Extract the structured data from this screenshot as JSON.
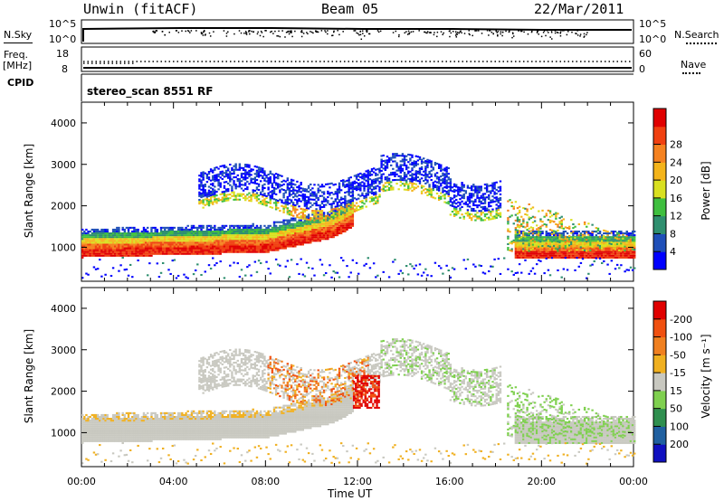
{
  "header": {
    "station": "Unwin (fitACF)",
    "beam": "Beam 05",
    "date": "22/Mar/2011"
  },
  "panels": {
    "nsky": {
      "label": "N.Sky",
      "right_label": "N.Search",
      "ticks_left": [
        "10^5",
        "10^0"
      ],
      "ticks_right": [
        "10^5",
        "10^0"
      ]
    },
    "freq": {
      "label_line1": "Freq.",
      "label_line2": "[MHz]",
      "right_label": "Nave",
      "ticks_left": [
        "18",
        "8"
      ],
      "ticks_right": [
        "60",
        "0"
      ]
    },
    "cpid": {
      "label": "CPID",
      "value": "stereo_scan 8551 RF"
    }
  },
  "chart_data": [
    {
      "type": "heatmap",
      "name": "power",
      "ylabel": "Slant Range [km]",
      "ylim": [
        180,
        4500
      ],
      "yticks": [
        1000,
        2000,
        3000,
        4000
      ],
      "xlabel": "",
      "colorbar": {
        "label": "Power [dB]",
        "ticks": [
          4,
          8,
          12,
          16,
          20,
          24,
          28
        ],
        "colors": [
          "#0000ff",
          "#1f4fb8",
          "#2f8f6f",
          "#3fbf3f",
          "#d9e020",
          "#f4b41a",
          "#f58220",
          "#f04010",
          "#e00000"
        ]
      }
    },
    {
      "type": "heatmap",
      "name": "velocity",
      "ylabel": "Slant Range [km]",
      "ylim": [
        180,
        4500
      ],
      "yticks": [
        1000,
        2000,
        3000,
        4000
      ],
      "xlabel": "Time UT",
      "xticks": [
        "00:00",
        "04:00",
        "08:00",
        "12:00",
        "16:00",
        "20:00",
        "00:00"
      ],
      "xlim_hours": [
        0,
        24
      ],
      "colorbar": {
        "label": "Velocity [m s⁻¹]",
        "ticks": [
          "200",
          "100",
          "50",
          "15",
          "-15",
          "-50",
          "-100",
          "-200"
        ],
        "colors": [
          "#1010c0",
          "#2060a0",
          "#2f8f4f",
          "#7fd04f",
          "#c8c8c0",
          "#f0b020",
          "#f08020",
          "#f05010",
          "#e00000"
        ]
      }
    }
  ]
}
